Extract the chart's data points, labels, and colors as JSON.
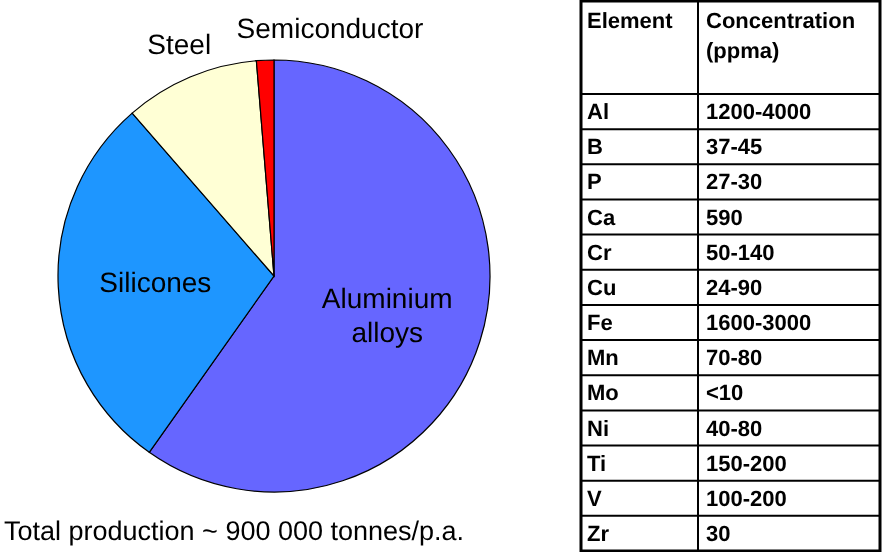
{
  "chart_data": [
    {
      "type": "pie",
      "categories": [
        "Aluminium alloys",
        "Silicones",
        "Steel",
        "Semiconductor"
      ],
      "values": [
        59.8,
        28.8,
        10.1,
        1.3
      ],
      "colors": [
        "#6666ff",
        "#1e96ff",
        "#ffffd5",
        "#ff0000"
      ],
      "annotations": [
        "Total production ~ 900 000 tonnes/p.a."
      ]
    },
    {
      "type": "other",
      "xlabel": "Element",
      "ylabel": "Concentration (ppma)",
      "categories": [
        "Al",
        "B",
        "P",
        "Ca",
        "Cr",
        "Cu",
        "Fe",
        "Mn",
        "Mo",
        "Ni",
        "Ti",
        "V",
        "Zr"
      ],
      "value_labels": [
        "1200-4000",
        "37-45",
        "27-30",
        "590",
        "50-140",
        "24-90",
        "1600-3000",
        "70-80",
        "<10",
        "40-80",
        "150-200",
        "100-200",
        "30"
      ]
    }
  ]
}
